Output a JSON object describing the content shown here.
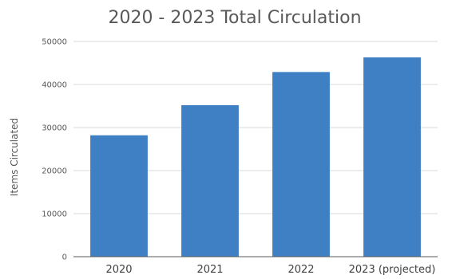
{
  "chart_data": {
    "type": "bar",
    "title": "2020 - 2023 Total Circulation",
    "xlabel": "",
    "ylabel": "Items Circulated",
    "categories": [
      "2020",
      "2021",
      "2022",
      "2023 (projected)"
    ],
    "values": [
      28200,
      35200,
      42900,
      46300
    ],
    "ylim": [
      0,
      50000
    ],
    "yticks": [
      "0",
      "10000",
      "20000",
      "30000",
      "40000",
      "50000"
    ],
    "grid": true,
    "legend": "none",
    "colors": {
      "bar": "#3F80C4",
      "grid": "#d9d9d9",
      "axis": "#595959"
    }
  }
}
